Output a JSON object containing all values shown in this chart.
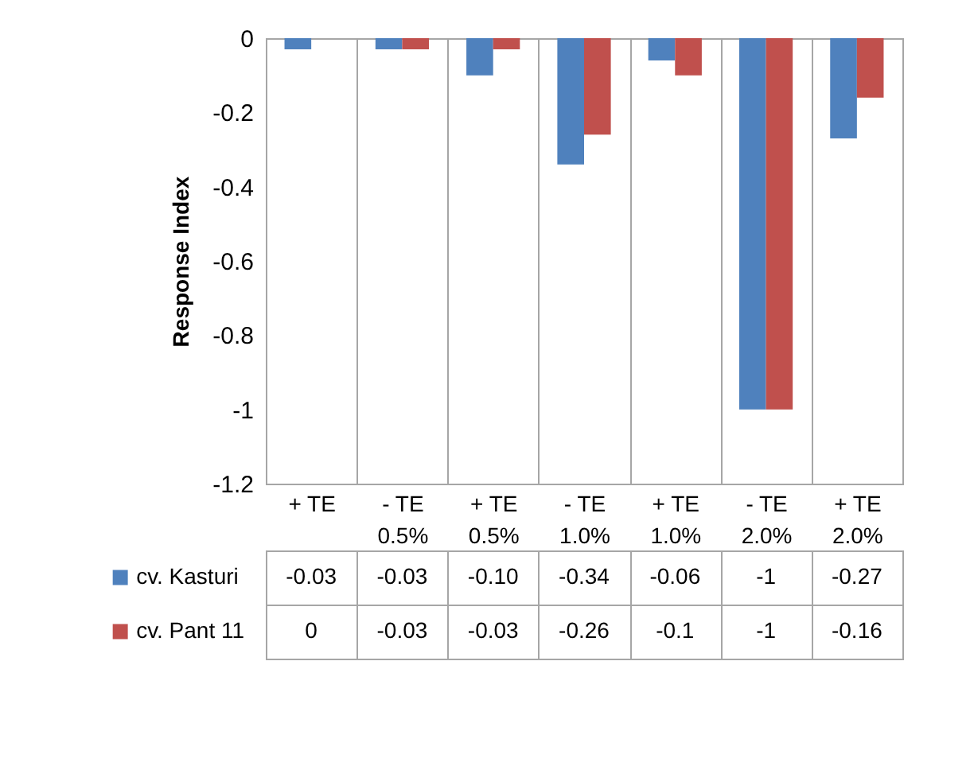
{
  "chart_data": {
    "type": "bar",
    "ylabel": "Response Index",
    "categories": [
      "+ TE",
      "- TE 0.5%",
      "+ TE 0.5%",
      "- TE 1.0%",
      "+ TE 1.0%",
      "- TE 2.0%",
      "+ TE 2.0%"
    ],
    "series": [
      {
        "name": "cv. Kasturi",
        "color": "#4f81bd",
        "values": [
          -0.03,
          -0.03,
          -0.1,
          -0.34,
          -0.06,
          -1,
          -0.27
        ],
        "value_labels": [
          "-0.03",
          "-0.03",
          "-0.10",
          "-0.34",
          "-0.06",
          "-1",
          "-0.27"
        ]
      },
      {
        "name": "cv. Pant 11",
        "color": "#c0504d",
        "values": [
          0,
          -0.03,
          -0.03,
          -0.26,
          -0.1,
          -1,
          -0.16
        ],
        "value_labels": [
          "0",
          "-0.03",
          "-0.03",
          "-0.26",
          "-0.1",
          "-1",
          "-0.16"
        ]
      }
    ],
    "ylim": [
      -1.2,
      0
    ],
    "yticks": [
      0,
      -0.2,
      -0.4,
      -0.6,
      -0.8,
      -1,
      -1.2
    ],
    "grid": false,
    "legend": "bottom"
  }
}
